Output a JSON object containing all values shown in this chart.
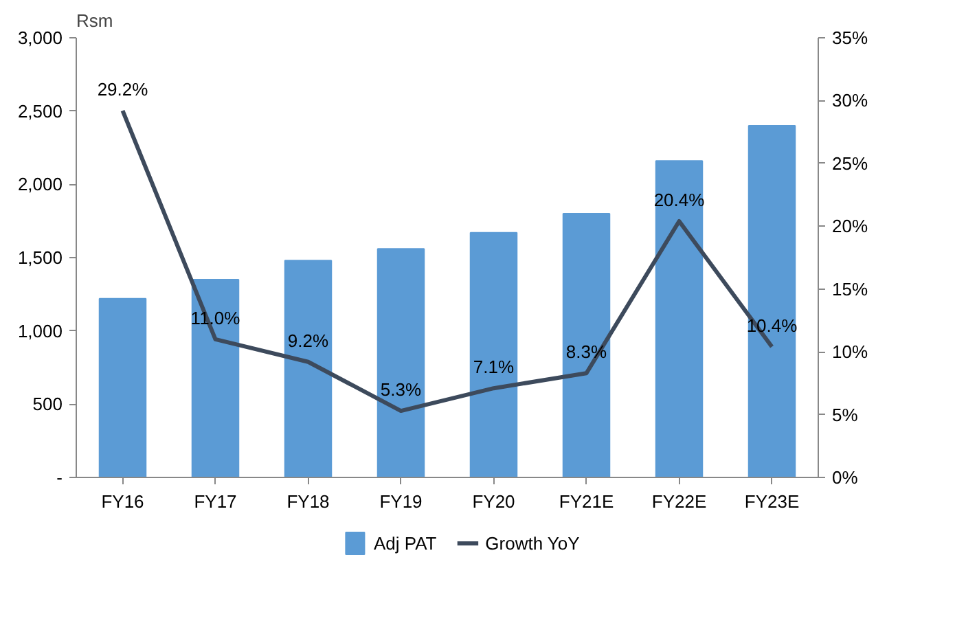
{
  "chart_data": {
    "type": "bar",
    "ylabel": "Rsm",
    "categories": [
      "FY16",
      "FY17",
      "FY18",
      "FY19",
      "FY20",
      "FY21E",
      "FY22E",
      "FY23E"
    ],
    "series": [
      {
        "name": "Adj PAT",
        "color": "#5b9bd5",
        "values": [
          1220,
          1350,
          1480,
          1560,
          1670,
          1800,
          2160,
          2400
        ]
      },
      {
        "name": "Growth YoY",
        "type": "line",
        "axis": "y2",
        "color": "#3d4a5c",
        "values": [
          29.2,
          11.0,
          9.2,
          5.3,
          7.1,
          8.3,
          20.4,
          10.4
        ],
        "value_labels": [
          "29.2%",
          "11.0%",
          "9.2%",
          "5.3%",
          "7.1%",
          "8.3%",
          "20.4%",
          "10.4%"
        ]
      }
    ],
    "ylim": [
      0,
      3000
    ],
    "yticks": [
      {
        "value": 0,
        "label": "-"
      },
      500,
      {
        "value": 1000,
        "label": "1,000"
      },
      {
        "value": 1500,
        "label": "1,500"
      },
      {
        "value": 2000,
        "label": "2,000"
      },
      {
        "value": 2500,
        "label": "2,500"
      },
      {
        "value": 3000,
        "label": "3,000"
      }
    ],
    "y2lim": [
      0,
      35
    ],
    "y2ticks": [
      {
        "value": 0,
        "label": "0%"
      },
      {
        "value": 5,
        "label": "5%"
      },
      {
        "value": 10,
        "label": "10%"
      },
      {
        "value": 15,
        "label": "15%"
      },
      {
        "value": 20,
        "label": "20%"
      },
      {
        "value": 25,
        "label": "25%"
      },
      {
        "value": 30,
        "label": "30%"
      },
      {
        "value": 35,
        "label": "35%"
      }
    ],
    "legend": "bottom",
    "grid": false
  }
}
